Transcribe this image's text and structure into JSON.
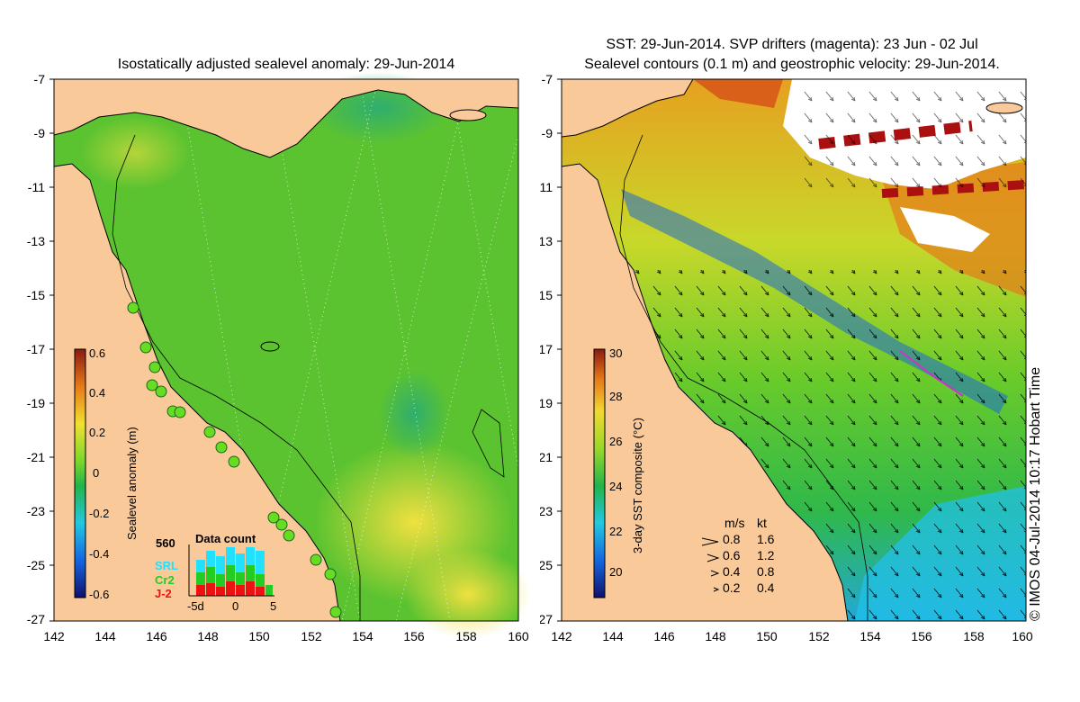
{
  "left_panel": {
    "title": "Isostatically adjusted sealevel anomaly: 29-Jun-2014",
    "y_ticks": [
      "-7",
      "-9",
      "-11",
      "-13",
      "-15",
      "-17",
      "-19",
      "-21",
      "-23",
      "-25",
      "-27"
    ],
    "x_ticks": [
      "142",
      "144",
      "146",
      "148",
      "150",
      "152",
      "154",
      "156",
      "158",
      "160"
    ],
    "colorbar": {
      "label": "Sealevel anomaly (m)",
      "ticks": [
        "0.6",
        "0.4",
        "0.2",
        "0",
        "-0.2",
        "-0.4",
        "-0.6"
      ],
      "range": [
        -0.6,
        0.6
      ]
    },
    "data_count": {
      "title": "Data count",
      "max_label": "560",
      "x_ticks": [
        "-5d",
        "0",
        "5"
      ],
      "legend": [
        {
          "label": "SRL",
          "color": "#22e0ff"
        },
        {
          "label": "Cr2",
          "color": "#22cc22"
        },
        {
          "label": "J-2",
          "color": "#ee1111"
        }
      ]
    }
  },
  "right_panel": {
    "title_line1": "SST: 29-Jun-2014. SVP drifters (magenta): 23 Jun - 02 Jul",
    "title_line2": "Sealevel contours (0.1 m) and geostrophic velocity: 29-Jun-2014.",
    "y_ticks": [
      "-7",
      "-9",
      "-11",
      "-13",
      "-15",
      "-17",
      "-19",
      "-21",
      "-23",
      "-25",
      "-27"
    ],
    "x_ticks": [
      "142",
      "144",
      "146",
      "148",
      "150",
      "152",
      "154",
      "156",
      "158",
      "160"
    ],
    "colorbar": {
      "label": "3-day SST composite (°C)",
      "ticks": [
        "30",
        "28",
        "26",
        "24",
        "22",
        "20"
      ],
      "range": [
        19,
        30
      ]
    },
    "velocity_legend": {
      "header_ms": "m/s",
      "header_kt": "kt",
      "rows": [
        {
          "ms": "0.8",
          "kt": "1.6"
        },
        {
          "ms": "0.6",
          "kt": "1.2"
        },
        {
          "ms": "0.4",
          "kt": "0.8"
        },
        {
          "ms": "0.2",
          "kt": "0.4"
        }
      ]
    }
  },
  "credit": "© IMOS 04-Jul-2014 10:17 Hobart Time",
  "colors": {
    "land": "#f9c99a",
    "ocean_slaa": "#59c02c",
    "ocean_sst": "#6acb2a"
  }
}
